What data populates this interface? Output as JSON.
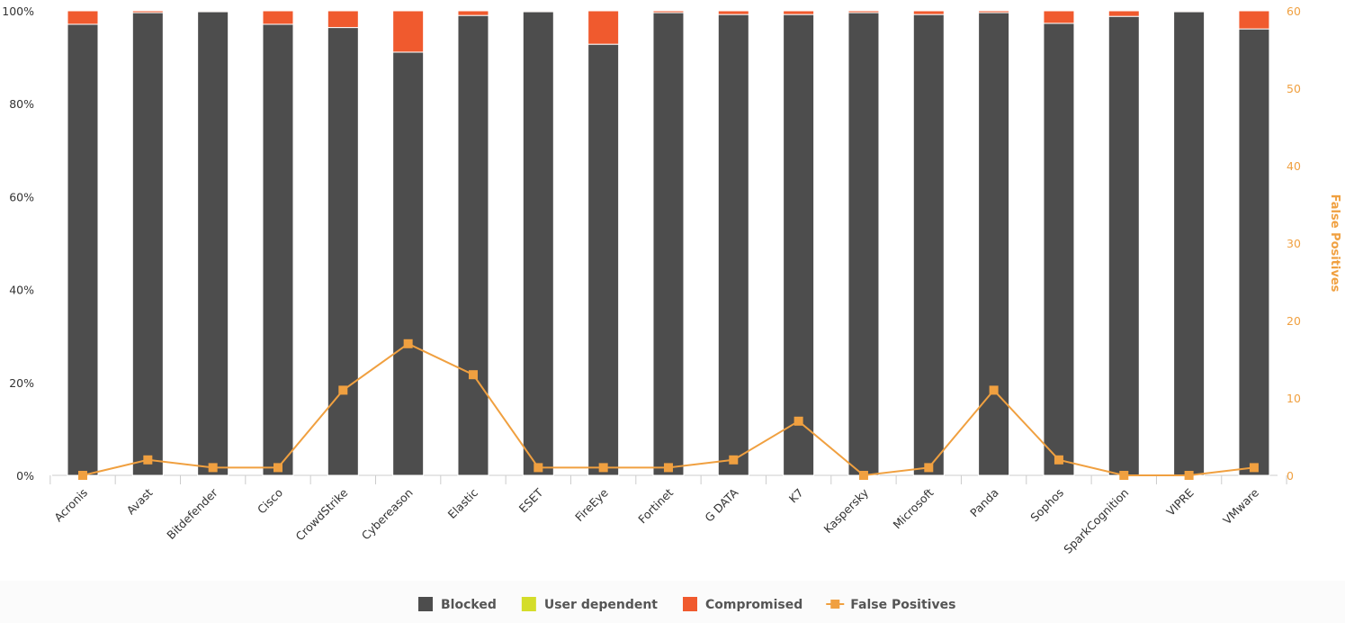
{
  "chart_data": {
    "type": "bar",
    "stacked": true,
    "categories": [
      "Acronis",
      "Avast",
      "Bitdefender",
      "Cisco",
      "CrowdStrike",
      "Cybereason",
      "Elastic",
      "ESET",
      "FireEye",
      "Fortinet",
      "G DATA",
      "K7",
      "Kaspersky",
      "Microsoft",
      "Panda",
      "Sophos",
      "SparkCognition",
      "VIPRE",
      "VMware"
    ],
    "series": [
      {
        "name": "Blocked",
        "color": "#4d4d4d",
        "axis": "left",
        "values": [
          97.1,
          99.6,
          99.8,
          97.1,
          96.4,
          91.1,
          99.0,
          99.8,
          92.8,
          99.6,
          99.2,
          99.2,
          99.6,
          99.2,
          99.6,
          97.3,
          98.8,
          99.8,
          96.1
        ]
      },
      {
        "name": "User dependent",
        "color": "#d4dd2a",
        "axis": "left",
        "values": [
          0,
          0,
          0,
          0,
          0,
          0,
          0,
          0,
          0,
          0,
          0,
          0,
          0,
          0,
          0,
          0,
          0,
          0,
          0
        ]
      },
      {
        "name": "Compromised",
        "color": "#f05a2e",
        "axis": "left",
        "values": [
          2.9,
          0.4,
          0.2,
          2.9,
          3.6,
          8.9,
          1.0,
          0.2,
          7.2,
          0.4,
          0.8,
          0.8,
          0.4,
          0.8,
          0.4,
          2.7,
          1.2,
          0.2,
          3.9
        ]
      },
      {
        "name": "False Positives",
        "type": "line",
        "color": "#f0a040",
        "axis": "right",
        "values": [
          0,
          2,
          1,
          1,
          11,
          17,
          13,
          1,
          1,
          1,
          2,
          7,
          0,
          1,
          11,
          2,
          0,
          0,
          1
        ]
      }
    ],
    "yaxis_left": {
      "range": [
        0,
        100
      ],
      "ticks": [
        "0%",
        "20%",
        "40%",
        "60%",
        "80%",
        "100%"
      ]
    },
    "yaxis_right": {
      "label": "False Positives",
      "range": [
        0,
        60
      ],
      "ticks": [
        "0",
        "10",
        "20",
        "30",
        "40",
        "50",
        "60"
      ],
      "color": "#f0a040"
    },
    "grid": false,
    "legend": "bottom"
  }
}
